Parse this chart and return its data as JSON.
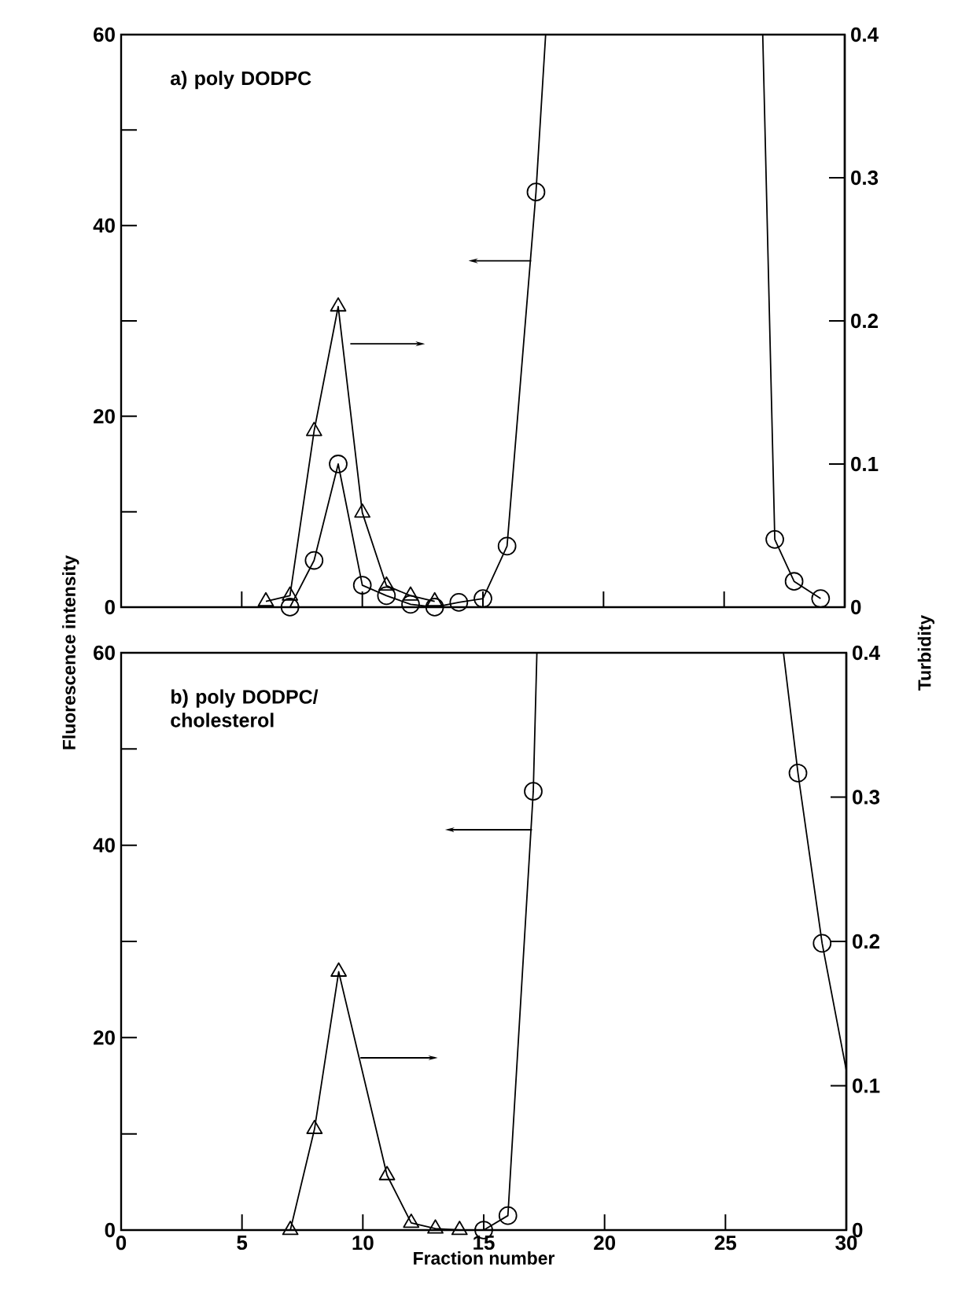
{
  "chart_data": [
    {
      "type": "line",
      "title": "a) poly DODPC",
      "xlim": [
        0,
        30
      ],
      "xticks": [
        0,
        5,
        10,
        15,
        20,
        25,
        30
      ],
      "ylim": [
        0,
        60
      ],
      "yticks": [
        0,
        {
          "value": 10,
          "label": null
        },
        20,
        {
          "value": 30,
          "label": null
        },
        40,
        {
          "value": 50,
          "label": null
        },
        60
      ],
      "y2lim": [
        0,
        0.4
      ],
      "y2ticks": [
        0,
        0.1,
        0.2,
        0.3,
        0.4
      ],
      "tick_labels": "y",
      "series": [
        {
          "color": "#000000",
          "marker": "none",
          "x": [
            7,
            8,
            9,
            10,
            11,
            12,
            13,
            14,
            15,
            16,
            17.2,
            17.6,
            22,
            26.6,
            27.1,
            27.9,
            29
          ],
          "values": [
            0,
            4.9,
            15,
            2.3,
            1.2,
            0.3,
            0,
            0.5,
            0.9,
            6.4,
            43.5,
            60,
            null,
            60,
            7.1,
            2.7,
            0.9
          ]
        },
        {
          "type": "scatter",
          "color": "#000000",
          "marker": "circle",
          "x": [
            7,
            8,
            9,
            10,
            11,
            12,
            13,
            14,
            15,
            16,
            17.2,
            27.1,
            27.9,
            29
          ],
          "values": [
            0,
            4.9,
            15,
            2.3,
            1.2,
            0.3,
            0,
            0.5,
            0.9,
            6.4,
            43.5,
            7.1,
            2.7,
            0.9
          ]
        },
        {
          "color": "#000000",
          "marker": "triangle",
          "axis": "y2",
          "x": [
            6,
            7,
            8,
            9,
            10,
            11,
            12,
            13
          ],
          "values": [
            0.004,
            0.008,
            0.123,
            0.21,
            0.066,
            0.015,
            0.008,
            0.004
          ]
        }
      ]
    },
    {
      "type": "line",
      "title": "b) poly DODPC/ cholesterol",
      "xlabel": "Fraction number",
      "ylabel": "Fluorescence intensity",
      "y2label": "Turbidity",
      "xlim": [
        0,
        30
      ],
      "xticks": [
        0,
        5,
        10,
        15,
        20,
        25,
        30
      ],
      "ylim": [
        0,
        60
      ],
      "yticks": [
        0,
        {
          "value": 10,
          "label": null
        },
        20,
        {
          "value": 30,
          "label": null
        },
        40,
        {
          "value": 50,
          "label": null
        },
        60
      ],
      "y2lim": [
        0,
        0.4
      ],
      "y2ticks": [
        0,
        0.1,
        0.2,
        0.3,
        0.4
      ],
      "series": [
        {
          "color": "#000000",
          "marker": "none",
          "x": [
            15,
            16,
            17.05,
            17.2,
            22,
            27.4,
            28,
            29,
            30
          ],
          "values": [
            0,
            1.5,
            45.6,
            60,
            null,
            60,
            47.5,
            29.8,
            16.6
          ]
        },
        {
          "type": "scatter",
          "color": "#000000",
          "marker": "circle",
          "x": [
            15,
            16,
            17.05,
            28,
            29
          ],
          "values": [
            0,
            1.5,
            45.6,
            47.5,
            29.8
          ]
        },
        {
          "color": "#000000",
          "marker": "triangle",
          "axis": "y2",
          "x": [
            7,
            8,
            9,
            11,
            12,
            13,
            14
          ],
          "values": [
            0,
            0.07,
            0.179,
            0.038,
            0.005,
            0.001,
            0
          ]
        }
      ]
    }
  ]
}
